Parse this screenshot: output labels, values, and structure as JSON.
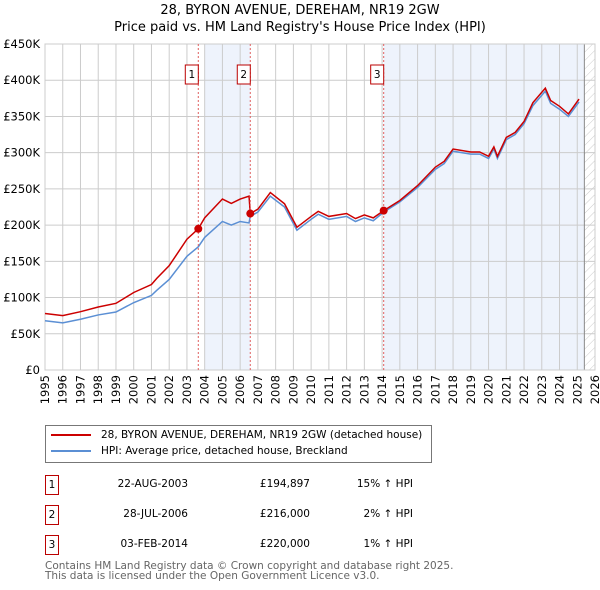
{
  "chart_data": {
    "type": "line",
    "title": "28, BYRON AVENUE, DEREHAM, NR19 2GW",
    "subtitle": "Price paid vs. HM Land Registry's House Price Index (HPI)",
    "xlim": [
      1995,
      2026
    ],
    "ylim": [
      0,
      450000
    ],
    "y_ticks": [
      {
        "v": 0,
        "label": "£0"
      },
      {
        "v": 50000,
        "label": "£50K"
      },
      {
        "v": 100000,
        "label": "£100K"
      },
      {
        "v": 150000,
        "label": "£150K"
      },
      {
        "v": 200000,
        "label": "£200K"
      },
      {
        "v": 250000,
        "label": "£250K"
      },
      {
        "v": 300000,
        "label": "£300K"
      },
      {
        "v": 350000,
        "label": "£350K"
      },
      {
        "v": 400000,
        "label": "£400K"
      },
      {
        "v": 450000,
        "label": "£450K"
      }
    ],
    "x_ticks": [
      "1995",
      "1996",
      "1997",
      "1998",
      "1999",
      "2000",
      "2001",
      "2002",
      "2003",
      "2004",
      "2005",
      "2006",
      "2007",
      "2008",
      "2009",
      "2010",
      "2011",
      "2012",
      "2013",
      "2014",
      "2015",
      "2016",
      "2017",
      "2018",
      "2019",
      "2020",
      "2021",
      "2022",
      "2023",
      "2024",
      "2025",
      "2026"
    ],
    "grid": true,
    "x": [
      1995,
      1996,
      1997,
      1998,
      1999,
      2000,
      2001,
      2001.3,
      2002,
      2003,
      2003.64,
      2004,
      2005,
      2005.5,
      2006,
      2006.5,
      2006.57,
      2007,
      2007.7,
      2008.5,
      2009.2,
      2010,
      2010.4,
      2011,
      2012,
      2012.5,
      2013,
      2013.5,
      2014.09,
      2015,
      2016,
      2017,
      2017.5,
      2018,
      2019,
      2019.5,
      2020,
      2020.3,
      2020.5,
      2021,
      2021.5,
      2022,
      2022.5,
      2023.2,
      2023.5,
      2024,
      2024.5,
      2025.1
    ],
    "series": [
      {
        "name": "28, BYRON AVENUE, DEREHAM, NR19 2GW (detached house)",
        "color": "#cc0000",
        "values": [
          78000,
          75000,
          80500,
          87000,
          92000,
          107000,
          118000,
          126500,
          144000,
          180500,
          194897,
          210000,
          236000,
          230000,
          236000,
          240000,
          216000,
          222000,
          245000,
          229500,
          197000,
          212000,
          219000,
          212000,
          216000,
          209000,
          214000,
          210000,
          220000,
          234000,
          254500,
          280000,
          288000,
          305000,
          301000,
          301000,
          295000,
          308000,
          295000,
          321000,
          328000,
          343000,
          369000,
          389000,
          372000,
          364000,
          353500,
          374000
        ]
      },
      {
        "name": "HPI: Average price, detached house, Breckland",
        "color": "#5b8fd4",
        "values": [
          68000,
          65000,
          70000,
          76000,
          80000,
          93000,
          103000,
          110000,
          125000,
          157000,
          170000,
          183000,
          205000,
          200000,
          205000,
          203000,
          212000,
          218000,
          240000,
          225000,
          193000,
          208000,
          215000,
          208000,
          212000,
          205000,
          210000,
          206000,
          218000,
          232000,
          252000,
          277000,
          285000,
          302000,
          298000,
          298000,
          292000,
          305000,
          292000,
          318000,
          325000,
          340000,
          365000,
          385000,
          368000,
          360000,
          350000,
          370000
        ]
      }
    ],
    "shaded_ranges": [
      [
        2004.0,
        2006.57
      ],
      [
        2014.09,
        2025.4
      ]
    ],
    "forecast_hatch_from": 2025.4,
    "sales": [
      {
        "n": "1",
        "x": 2003.64,
        "price": 194897,
        "date": "22-AUG-2003",
        "price_label": "£194,897",
        "hpi": "15% ↑ HPI"
      },
      {
        "n": "2",
        "x": 2006.57,
        "price": 216000,
        "date": "28-JUL-2006",
        "price_label": "£216,000",
        "hpi": "2% ↑ HPI"
      },
      {
        "n": "3",
        "x": 2014.09,
        "price": 220000,
        "date": "03-FEB-2014",
        "price_label": "£220,000",
        "hpi": "1% ↑ HPI"
      }
    ],
    "legend_position": "below"
  },
  "footer": {
    "line1": "Contains HM Land Registry data © Crown copyright and database right 2025.",
    "line2": "This data is licensed under the Open Government Licence v3.0."
  }
}
